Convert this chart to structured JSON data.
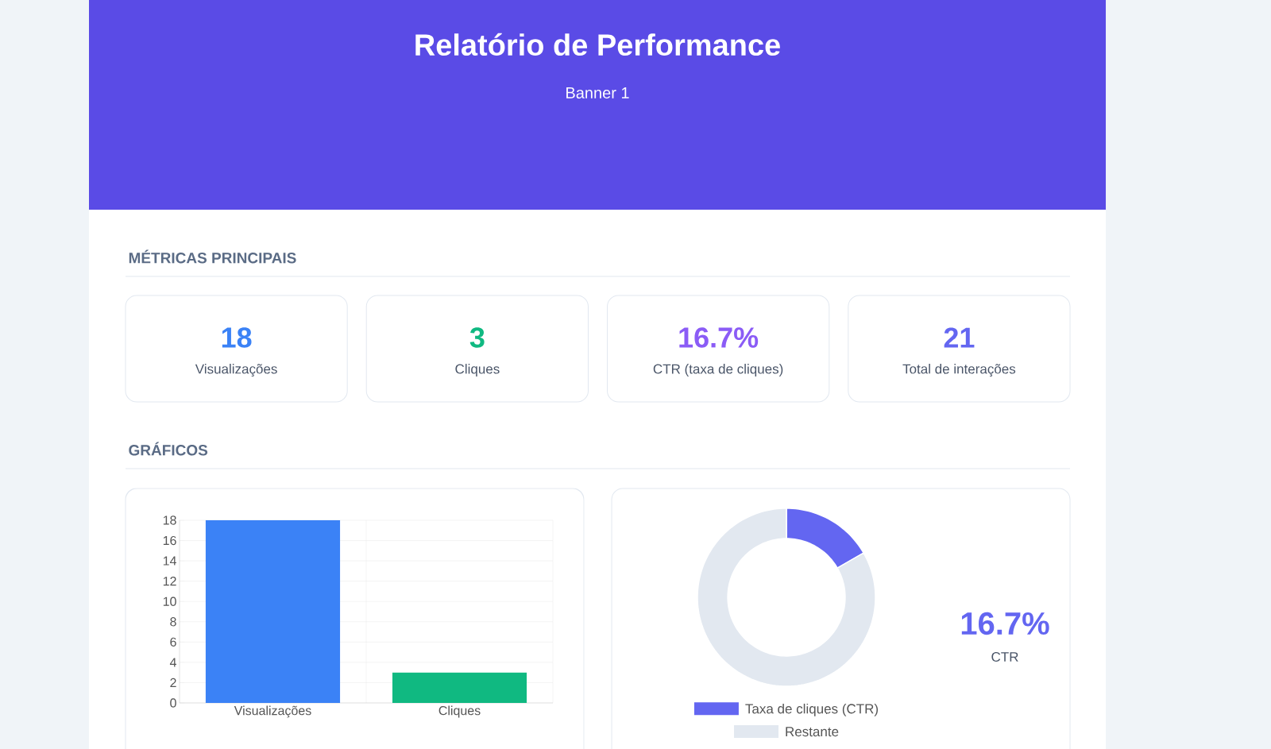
{
  "chart_data": [
    {
      "type": "other",
      "title": "Relatório de Performance",
      "subtitle": "Banner 1",
      "annotations": [
        "MÉTRICAS PRINCIPAIS",
        "18",
        "Visualizações",
        "3",
        "Cliques",
        "16.7%",
        "CTR (taxa de cliques)",
        "21",
        "Total de interações",
        "GRÁFICOS"
      ]
    },
    {
      "type": "bar",
      "categories": [
        "Visualizações",
        "Cliques"
      ],
      "values": [
        18,
        3
      ],
      "colors": [
        "#3b82f6",
        "#10b981"
      ],
      "ylim": [
        0,
        18
      ],
      "yticks": [
        0,
        2,
        4,
        6,
        8,
        10,
        12,
        14,
        16,
        18
      ],
      "grid": true
    },
    {
      "type": "donut",
      "categories": [
        "Taxa de cliques (CTR)",
        "Restante"
      ],
      "values": [
        16.7,
        83.3
      ],
      "colors": [
        "#6366f1",
        "#e2e8f0"
      ],
      "legend": "bottom",
      "annotations": [
        "16.7%",
        "CTR"
      ]
    }
  ]
}
